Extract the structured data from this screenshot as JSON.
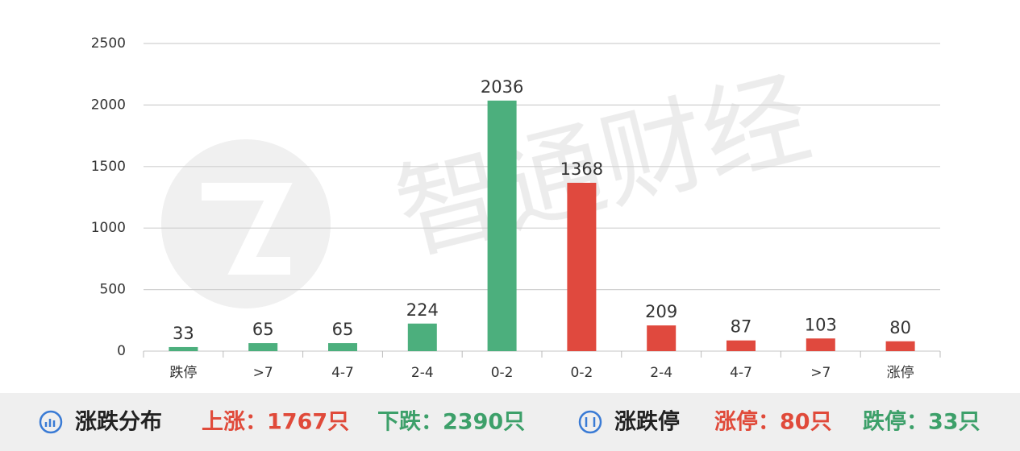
{
  "chart_data": {
    "type": "bar",
    "categories": [
      "跌停",
      ">7",
      "4-7",
      "2-4",
      "0-2",
      "0-2",
      "2-4",
      "4-7",
      ">7",
      "涨停"
    ],
    "values": [
      33,
      65,
      65,
      224,
      2036,
      1368,
      209,
      87,
      103,
      80
    ],
    "colors": [
      "#4caf7d",
      "#4caf7d",
      "#4caf7d",
      "#4caf7d",
      "#4caf7d",
      "#e0493e",
      "#e0493e",
      "#e0493e",
      "#e0493e",
      "#e0493e"
    ],
    "ylim": [
      0,
      2500
    ],
    "yticks": [
      0,
      500,
      1000,
      1500,
      2000,
      2500
    ],
    "grid": true,
    "watermark": "智通财经"
  },
  "footer": {
    "left_title": "涨跌分布",
    "up": "上涨：1767只",
    "down": "下跌：2390只",
    "right_title": "涨跌停",
    "limit_up": "涨停：80只",
    "limit_down": "跌停：33只"
  }
}
